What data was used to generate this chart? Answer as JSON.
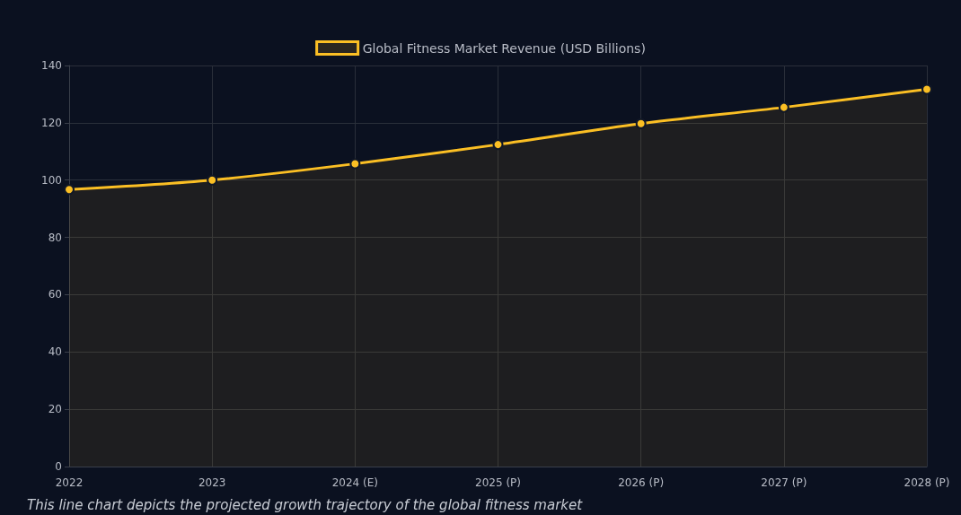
{
  "chart_data": {
    "type": "area",
    "categories": [
      "2022",
      "2023",
      "2024 (E)",
      "2025 (P)",
      "2026 (P)",
      "2027 (P)",
      "2028 (P)"
    ],
    "series": [
      {
        "name": "Global Fitness Market Revenue (USD Billions)",
        "color": "#fbbf24",
        "values": [
          96.7,
          100,
          105.7,
          112.4,
          119.7,
          125.4,
          131.7
        ]
      }
    ],
    "ylim": [
      0,
      140
    ],
    "yticks": [
      0,
      20,
      40,
      60,
      80,
      100,
      120,
      140
    ],
    "grid": true,
    "legend": "top",
    "marker": "circle",
    "annotations": [
      "This line chart depicts the projected growth trajectory of the global fitness market"
    ]
  }
}
